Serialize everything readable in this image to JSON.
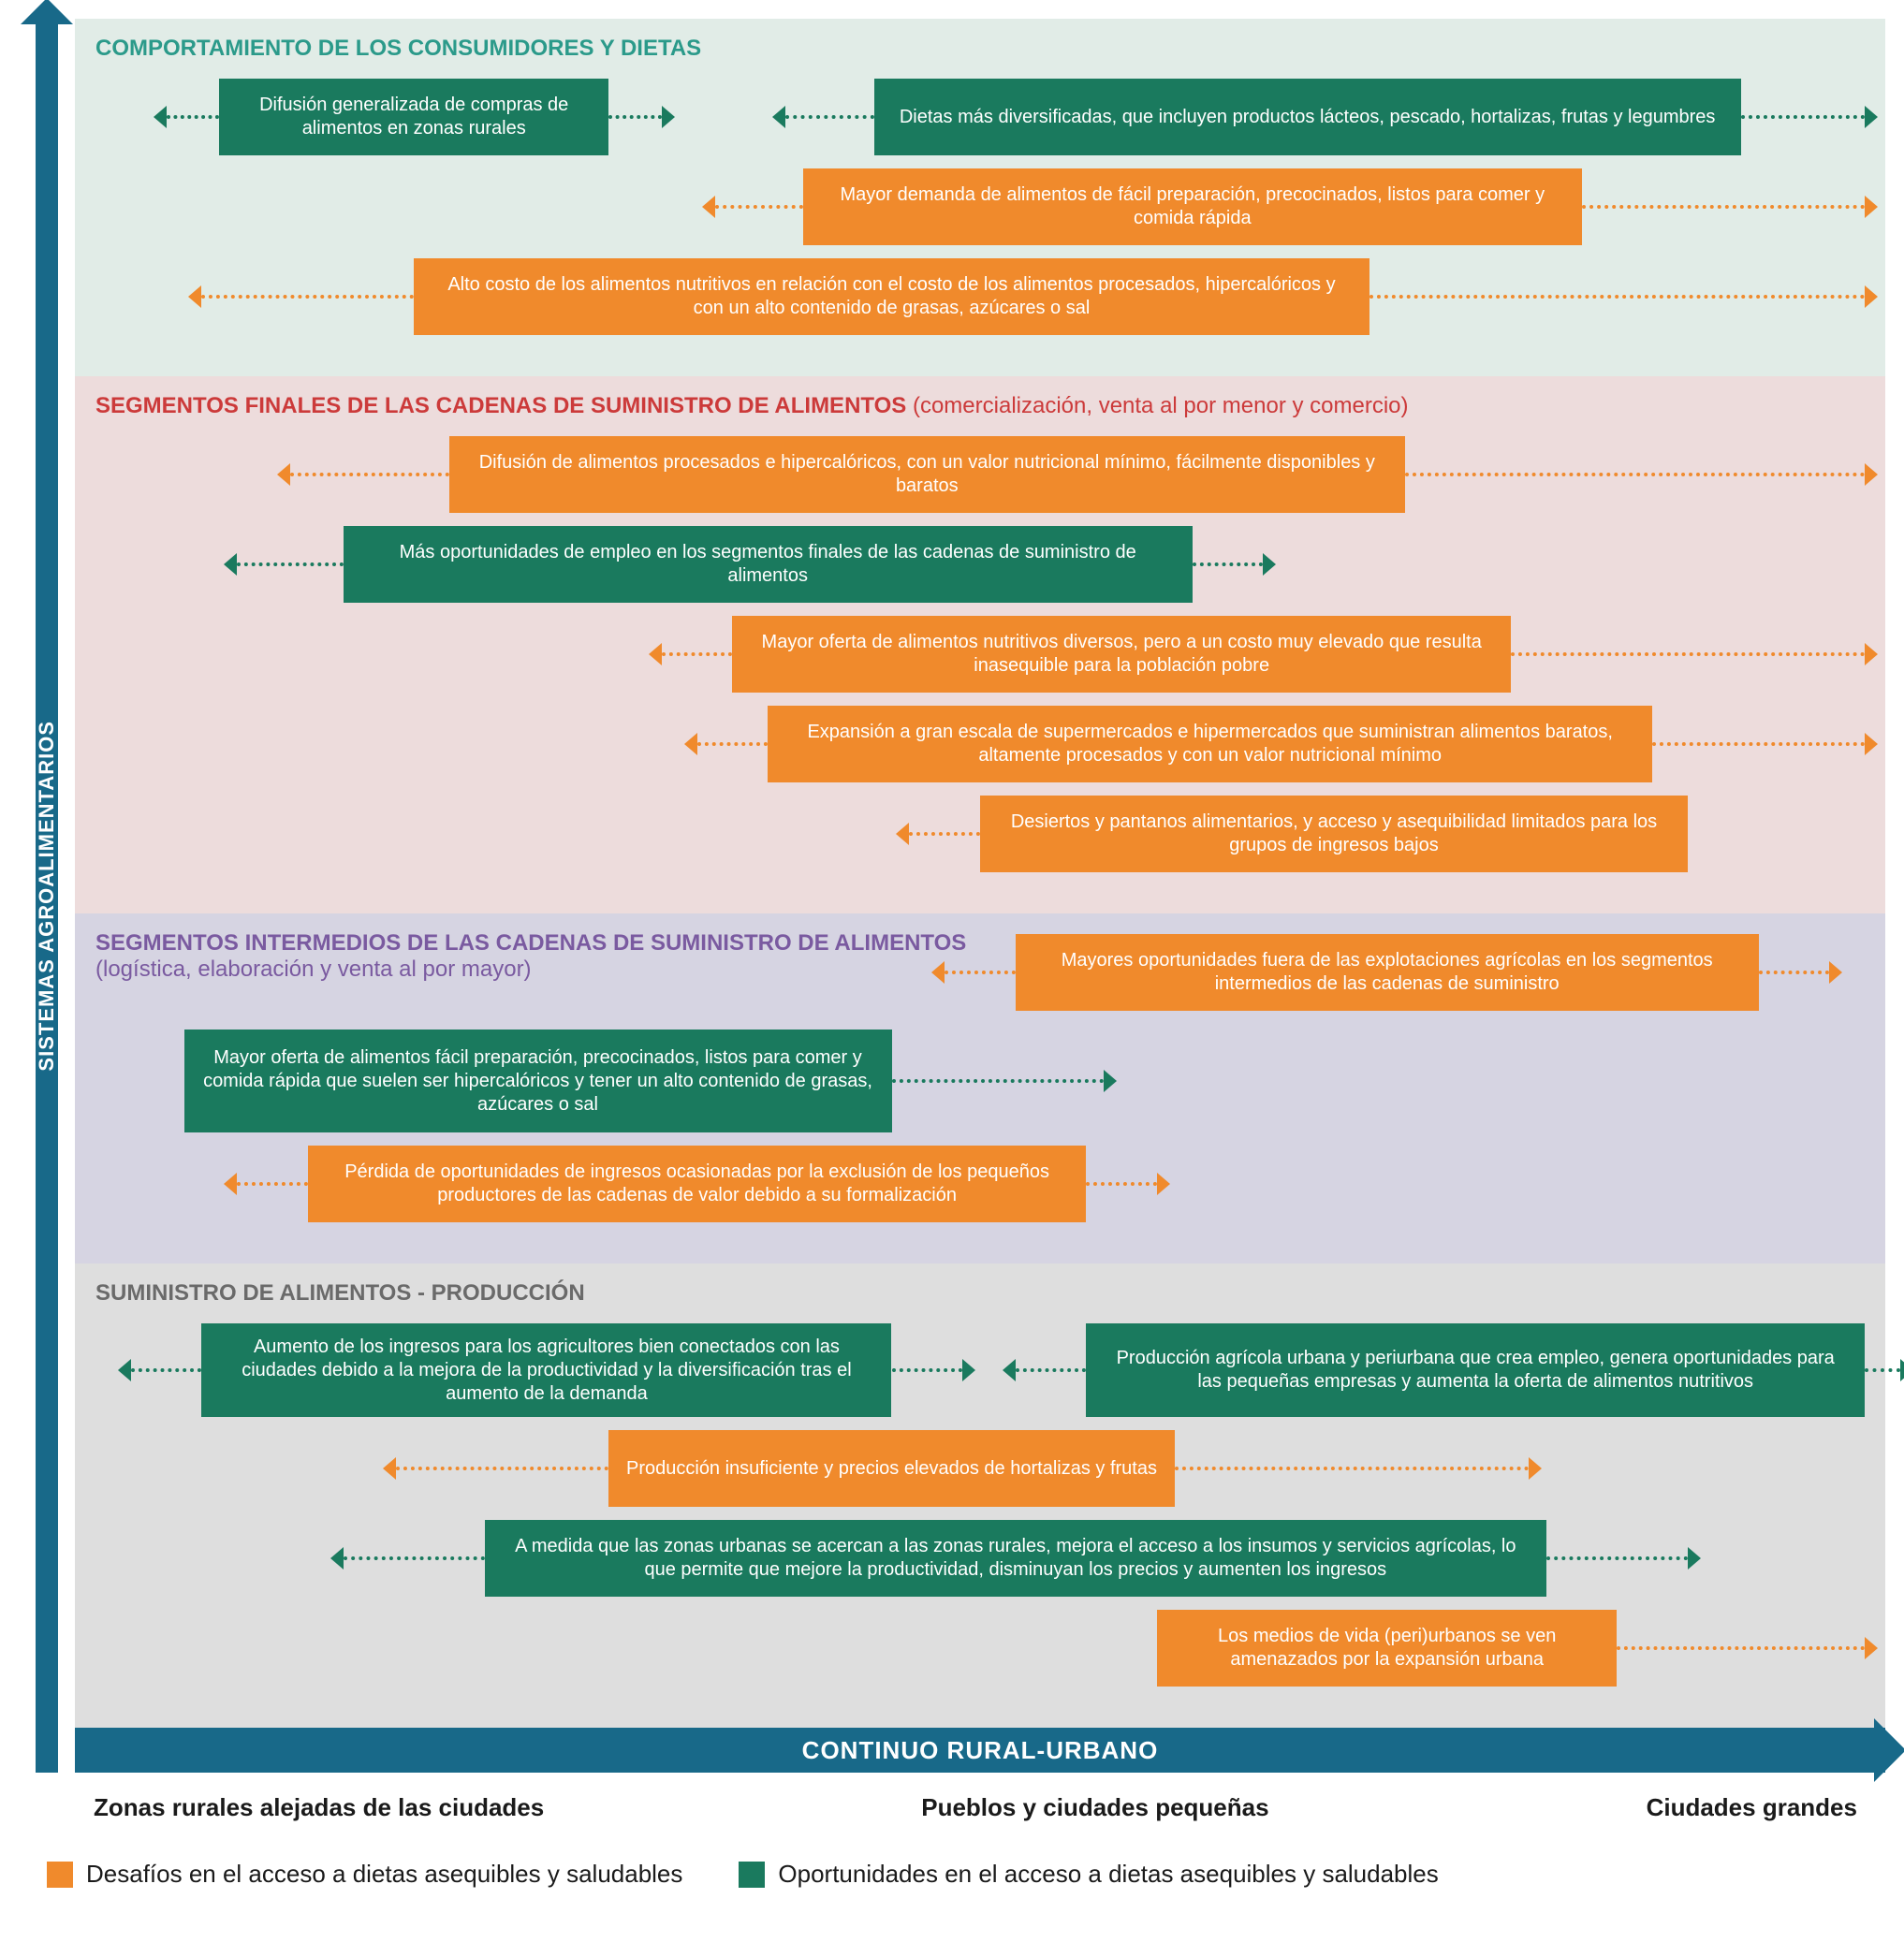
{
  "colors": {
    "axis": "#186989",
    "challenge": "#f08a2c",
    "opportunity": "#1a7a5e",
    "teal_text": "#2b9a8a",
    "red_text": "#cc3a3a",
    "purple_text": "#7a5aa0",
    "gray_text": "#6a6a6a",
    "bg1": "#e1ece7",
    "bg2": "#eddcdc",
    "bg3": "#d6d4e2",
    "bg4": "#dedede"
  },
  "yAxisLabel": "SISTEMAS AGROALIMENTARIOS",
  "xAxisLabel": "CONTINUO RURAL-URBANO",
  "xTicks": [
    "Zonas rurales alejadas de las ciudades",
    "Pueblos y ciudades pequeñas",
    "Ciudades grandes"
  ],
  "legend": {
    "challenge": "Desafíos en el acceso a dietas asequibles y saludables",
    "opportunity": "Oportunidades en el acceso a dietas asequibles y saludables"
  },
  "sections": [
    {
      "id": "consumers",
      "title": "COMPORTAMIENTO DE LOS CONSUMIDORES Y DIETAS",
      "titleColor": "teal_text",
      "bg": "bg1",
      "rows": [
        {
          "boxes": [
            {
              "type": "opportunity",
              "left": 7,
              "width": 22,
              "text": "Difusión generalizada de compras de alimentos en zonas rurales",
              "arrowL": 3,
              "arrowR": 3
            },
            {
              "type": "opportunity",
              "left": 44,
              "width": 49,
              "text": "Dietas más diversificadas, que incluyen productos lácteos, pescado, hortalizas, frutas y legumbres",
              "arrowL": 5,
              "arrowR": 7
            }
          ]
        },
        {
          "boxes": [
            {
              "type": "challenge",
              "left": 40,
              "width": 44,
              "text": "Mayor demanda de alimentos de fácil preparación, precocinados, listos para comer y comida rápida",
              "arrowL": 5,
              "arrowR": 16
            }
          ]
        },
        {
          "boxes": [
            {
              "type": "challenge",
              "left": 18,
              "width": 54,
              "text": "Alto costo de los alimentos nutritivos en relación con el costo de los alimentos procesados, hipercalóricos y con un alto contenido de grasas, azúcares o sal",
              "arrowL": 12,
              "arrowR": 28
            }
          ]
        }
      ]
    },
    {
      "id": "downstream",
      "title": "SEGMENTOS FINALES DE LAS CADENAS DE SUMINISTRO DE ALIMENTOS ",
      "subtitle": "(comercialización, venta al por menor y comercio)",
      "titleColor": "red_text",
      "bg": "bg2",
      "rows": [
        {
          "boxes": [
            {
              "type": "challenge",
              "left": 20,
              "width": 54,
              "text": "Difusión de alimentos procesados e hipercalóricos, con un valor nutricional mínimo, fácilmente disponibles y baratos",
              "arrowL": 9,
              "arrowR": 26
            }
          ]
        },
        {
          "boxes": [
            {
              "type": "opportunity",
              "left": 14,
              "width": 48,
              "text": "Más oportunidades de empleo en los segmentos finales de las cadenas de suministro de alimentos",
              "arrowL": 6,
              "arrowR": 4
            }
          ]
        },
        {
          "boxes": [
            {
              "type": "challenge",
              "left": 36,
              "width": 44,
              "text": "Mayor oferta de alimentos nutritivos diversos, pero a un costo muy elevado que resulta inasequible para la población pobre",
              "arrowL": 4,
              "arrowR": 20
            }
          ]
        },
        {
          "boxes": [
            {
              "type": "challenge",
              "left": 38,
              "width": 50,
              "text": "Expansión a gran escala de supermercados e hipermercados que suministran alimentos baratos, altamente procesados y con un valor nutricional mínimo",
              "arrowL": 4,
              "arrowR": 12
            }
          ]
        },
        {
          "boxes": [
            {
              "type": "challenge",
              "left": 50,
              "width": 40,
              "text": "Desiertos y pantanos alimentarios, y acceso y asequibilidad limitados para los grupos de ingresos bajos",
              "arrowL": 4,
              "arrowRNone": true
            }
          ]
        }
      ]
    },
    {
      "id": "midstream",
      "title": "SEGMENTOS INTERMEDIOS DE LAS CADENAS DE SUMINISTRO DE ALIMENTOS",
      "subtitle": "(logística, elaboración y venta al por mayor)",
      "subtitleBlock": true,
      "titleColor": "purple_text",
      "bg": "bg3",
      "rows": [
        {
          "titleOverlay": true,
          "boxes": [
            {
              "type": "challenge",
              "left": 52,
              "width": 42,
              "text": "Mayores oportunidades fuera de las explotaciones agrícolas en los segmentos intermedios de las cadenas de suministro",
              "arrowL": 4,
              "arrowR": 4
            }
          ]
        },
        {
          "height": 110,
          "boxes": [
            {
              "type": "opportunity",
              "left": 5,
              "width": 40,
              "height": 110,
              "text": "Mayor oferta de alimentos fácil preparación, precocinados, listos para comer y comida rápida que suelen ser hipercalóricos y tener un alto contenido de grasas, azúcares o sal",
              "arrowLNone": true,
              "arrowR": 12
            }
          ]
        },
        {
          "boxes": [
            {
              "type": "challenge",
              "left": 12,
              "width": 44,
              "text": "Pérdida de oportunidades de ingresos ocasionadas por la exclusión de los pequeños productores de las cadenas de valor debido a su formalización",
              "arrowL": 4,
              "arrowR": 4
            }
          ]
        }
      ]
    },
    {
      "id": "production",
      "title": "SUMINISTRO DE ALIMENTOS - PRODUCCIÓN",
      "titleColor": "gray_text",
      "bg": "bg4",
      "rows": [
        {
          "height": 100,
          "boxes": [
            {
              "type": "opportunity",
              "left": 6,
              "width": 39,
              "height": 100,
              "text": "Aumento de los ingresos para los agricultores bien conectados con las ciudades debido a la mejora de la productividad y la diversificación tras el aumento de la demanda",
              "arrowL": 4,
              "arrowR": 4
            },
            {
              "type": "opportunity",
              "left": 56,
              "width": 44,
              "text": "Producción agrícola urbana y periurbana que crea empleo, genera oportunidades para las pequeñas empresas y aumenta la oferta de alimentos nutritivos",
              "arrowL": 4,
              "arrowR": 2
            }
          ]
        },
        {
          "boxes": [
            {
              "type": "challenge",
              "left": 29,
              "width": 32,
              "text": "Producción insuficiente y precios elevados de hortalizas y frutas",
              "arrowL": 12,
              "arrowR": 20
            }
          ]
        },
        {
          "boxes": [
            {
              "type": "opportunity",
              "left": 22,
              "width": 60,
              "text": "A medida que las zonas urbanas se acercan a las zonas rurales, mejora el acceso a los insumos y servicios agrícolas, lo que permite que mejore la productividad, disminuyan los precios y aumenten los ingresos",
              "arrowL": 8,
              "arrowR": 8
            }
          ]
        },
        {
          "boxes": [
            {
              "type": "challenge",
              "left": 60,
              "width": 26,
              "text": "Los medios de vida (peri)urbanos se ven amenazados por la expansión urbana",
              "arrowLNone": true,
              "arrowR": 14
            }
          ]
        }
      ]
    }
  ]
}
